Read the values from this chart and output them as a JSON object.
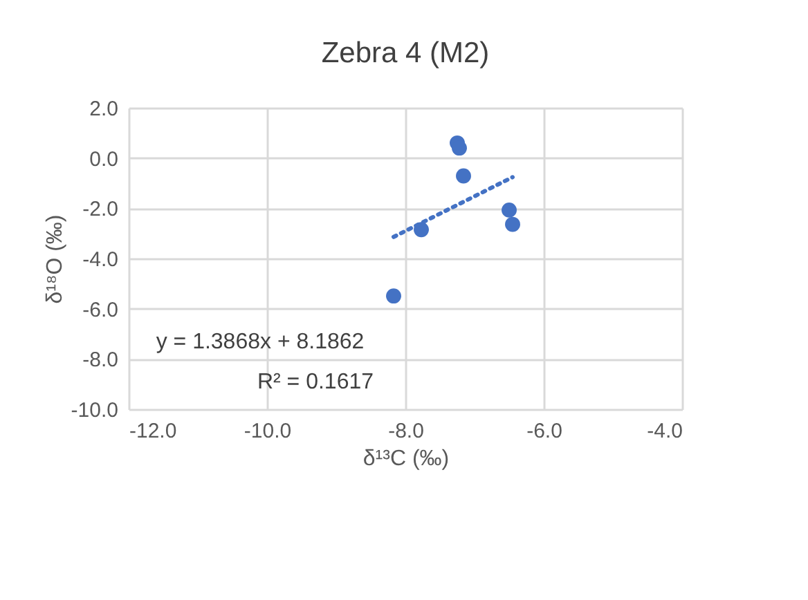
{
  "chart_data": {
    "type": "scatter",
    "title": "Zebra 4 (M2)",
    "xlabel": "δ¹³C (‰)",
    "ylabel": "δ¹⁸O (‰)",
    "series": [
      {
        "color": "#4472c4",
        "marker": "circle",
        "x": [
          -7.25,
          -7.22,
          -7.16,
          -7.77,
          -8.17,
          -6.5,
          -6.45
        ],
        "values": [
          0.6,
          0.4,
          -0.71,
          -2.85,
          -5.49,
          -2.07,
          -2.64
        ]
      },
      {
        "type": "line",
        "color": "#4472c4",
        "line_style": "dotted",
        "marker": "none",
        "x": [
          -8.17,
          -6.45
        ],
        "values": [
          -3.14,
          -0.76
        ]
      }
    ],
    "annotations": [
      "y = 1.3868x + 8.1862",
      "R² = 0.1617"
    ],
    "xlim": [
      -12,
      -4
    ],
    "xticks": [
      {
        "value": -12,
        "label": "-12.0"
      },
      {
        "value": -10,
        "label": "-10.0"
      },
      {
        "value": -8,
        "label": "-8.0"
      },
      {
        "value": -6,
        "label": "-6.0"
      },
      {
        "value": -4,
        "label": "-4.0"
      }
    ],
    "ylim": [
      -10,
      2
    ],
    "yticks": [
      {
        "value": -10,
        "label": "-10.0"
      },
      {
        "value": -8,
        "label": "-8.0"
      },
      {
        "value": -6,
        "label": "-6.0"
      },
      {
        "value": -4,
        "label": "-4.0"
      },
      {
        "value": -2,
        "label": "-2.0"
      },
      {
        "value": 0,
        "label": "0.0"
      },
      {
        "value": 2,
        "label": "2.0"
      }
    ],
    "grid": true
  }
}
